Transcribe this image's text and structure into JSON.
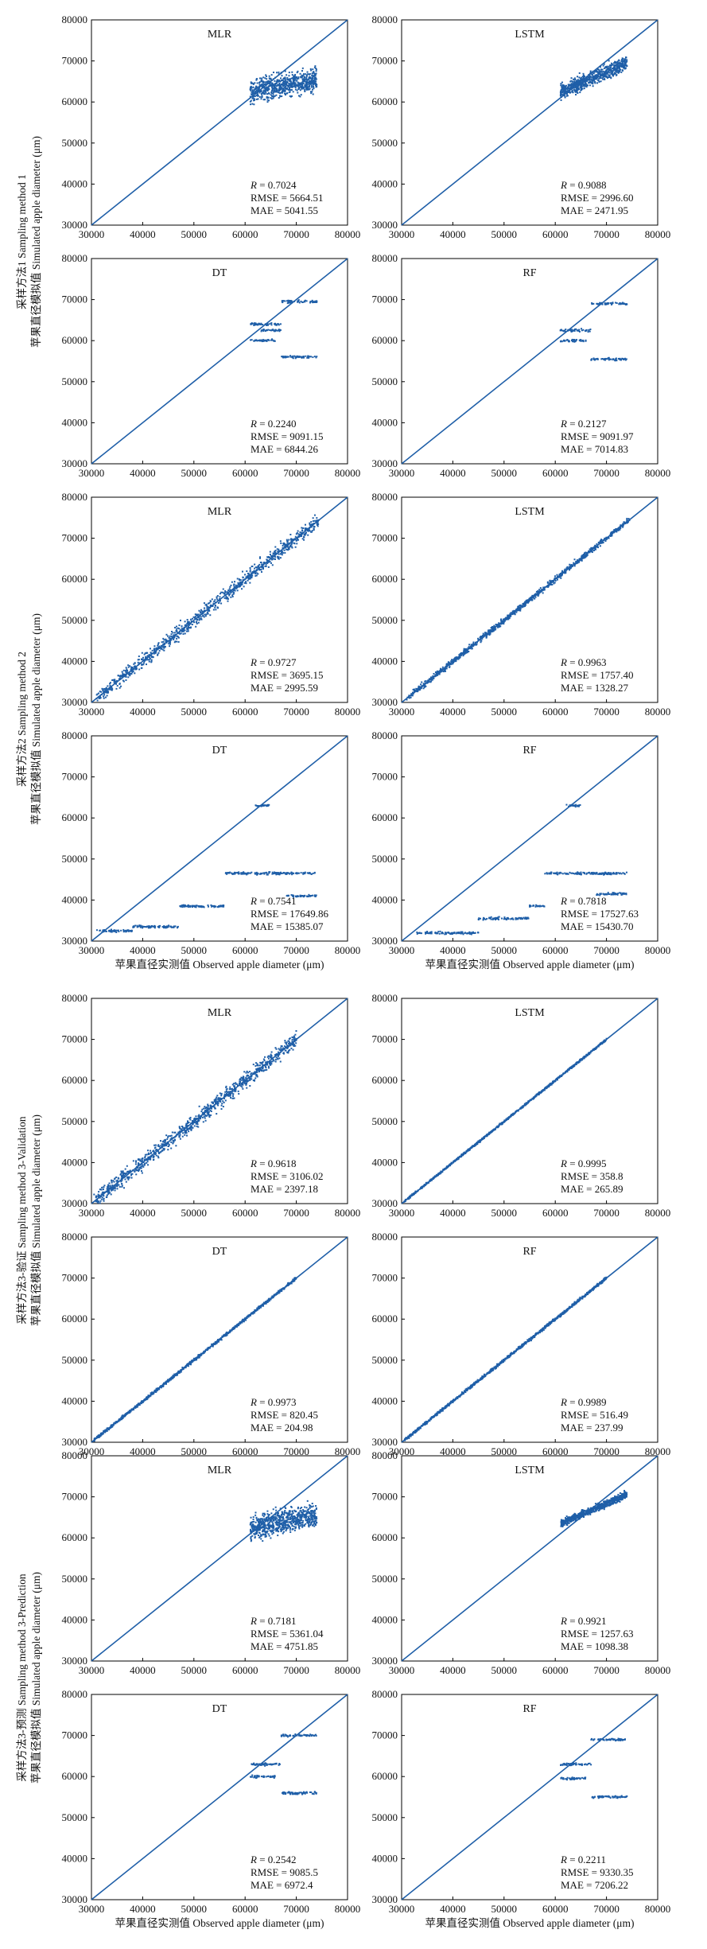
{
  "figure": {
    "x_axis_label": "苹果直径实测值 Observed apple diameter (μm)",
    "row_labels": [
      {
        "line1": "采样方法1 Sampling method 1",
        "line2": "苹果直径模拟值 Simulated apple diameter (μm)"
      },
      {
        "line1": "采样方法2 Sampling method 2",
        "line2": "苹果直径模拟值 Simulated apple diameter (μm)"
      },
      {
        "line1": "采样方法3-验证 Sampling method 3-Validation",
        "line2": "苹果直径模拟值 Simulated apple diameter (μm)"
      },
      {
        "line1": "采样方法3-预测 Sampling method 3-Prediction",
        "line2": "苹果直径模拟值 Simulated apple diameter (μm)"
      }
    ],
    "colors": {
      "points": "#1f5fa8",
      "reference_line": "#1f5fa8",
      "frame": "#000000"
    }
  },
  "chart_data": [
    {
      "type": "scatter",
      "title": "MLR",
      "group": 0,
      "col": 0,
      "row": 0,
      "xlim": [
        30000,
        80000
      ],
      "ylim": [
        30000,
        80000
      ],
      "xticks": [
        "30000",
        "40000",
        "50000",
        "60000",
        "70000",
        "80000"
      ],
      "yticks": [
        "30000",
        "40000",
        "50000",
        "60000",
        "70000",
        "80000"
      ],
      "reference_line": "1:1",
      "stats": {
        "R": "0.7024",
        "RMSE": "5664.51",
        "MAE": "5041.55"
      },
      "pattern": "cluster_high",
      "x_range": [
        61000,
        74000
      ],
      "y_center": 64000,
      "y_spread": 4000
    },
    {
      "type": "scatter",
      "title": "LSTM",
      "group": 0,
      "col": 1,
      "row": 0,
      "xlim": [
        30000,
        80000
      ],
      "ylim": [
        30000,
        80000
      ],
      "xticks": [
        "30000",
        "40000",
        "50000",
        "60000",
        "70000",
        "80000"
      ],
      "yticks": [
        "30000",
        "40000",
        "50000",
        "60000",
        "70000",
        "80000"
      ],
      "reference_line": "1:1",
      "stats": {
        "R": "0.9088",
        "RMSE": "2996.60",
        "MAE": "2471.95"
      },
      "pattern": "cluster_follow",
      "x_range": [
        61000,
        74000
      ],
      "y_center": 66000,
      "y_spread": 2500
    },
    {
      "type": "scatter",
      "title": "DT",
      "group": 0,
      "col": 0,
      "row": 1,
      "xlim": [
        30000,
        80000
      ],
      "ylim": [
        30000,
        80000
      ],
      "xticks": [
        "30000",
        "40000",
        "50000",
        "60000",
        "70000",
        "80000"
      ],
      "yticks": [
        "30000",
        "40000",
        "50000",
        "60000",
        "70000",
        "80000"
      ],
      "reference_line": "1:1",
      "stats": {
        "R": "0.2240",
        "RMSE": "9091.15",
        "MAE": "6844.26"
      },
      "pattern": "steps",
      "steps": [
        [
          61000,
          67000,
          64000
        ],
        [
          61000,
          66000,
          60000
        ],
        [
          63000,
          67000,
          62500
        ],
        [
          67000,
          74000,
          69500
        ],
        [
          67000,
          74000,
          56000
        ]
      ]
    },
    {
      "type": "scatter",
      "title": "RF",
      "group": 0,
      "col": 1,
      "row": 1,
      "xlim": [
        30000,
        80000
      ],
      "ylim": [
        30000,
        80000
      ],
      "xticks": [
        "30000",
        "40000",
        "50000",
        "60000",
        "70000",
        "80000"
      ],
      "yticks": [
        "30000",
        "40000",
        "50000",
        "60000",
        "70000",
        "80000"
      ],
      "reference_line": "1:1",
      "stats": {
        "R": "0.2127",
        "RMSE": "9091.97",
        "MAE": "7014.83"
      },
      "pattern": "steps",
      "steps": [
        [
          61000,
          67000,
          62500
        ],
        [
          61000,
          66000,
          60000
        ],
        [
          67000,
          74000,
          69000
        ],
        [
          67000,
          74000,
          55500
        ]
      ]
    },
    {
      "type": "scatter",
      "title": "MLR",
      "group": 1,
      "col": 0,
      "row": 0,
      "xlim": [
        30000,
        80000
      ],
      "ylim": [
        30000,
        80000
      ],
      "xticks": [
        "30000",
        "40000",
        "50000",
        "60000",
        "70000",
        "80000"
      ],
      "yticks": [
        "30000",
        "40000",
        "50000",
        "60000",
        "70000",
        "80000"
      ],
      "reference_line": "1:1",
      "stats": {
        "R": "0.9727",
        "RMSE": "3695.15",
        "MAE": "2995.59"
      },
      "pattern": "wide_diag",
      "x_range": [
        31000,
        74500
      ],
      "y_spread": 2500
    },
    {
      "type": "scatter",
      "title": "LSTM",
      "group": 1,
      "col": 1,
      "row": 0,
      "xlim": [
        30000,
        80000
      ],
      "ylim": [
        30000,
        80000
      ],
      "xticks": [
        "30000",
        "40000",
        "50000",
        "60000",
        "70000",
        "80000"
      ],
      "yticks": [
        "30000",
        "40000",
        "50000",
        "60000",
        "70000",
        "80000"
      ],
      "reference_line": "1:1",
      "stats": {
        "R": "0.9963",
        "RMSE": "1757.40",
        "MAE": "1328.27"
      },
      "pattern": "wide_diag",
      "x_range": [
        31000,
        74500
      ],
      "y_spread": 1000
    },
    {
      "type": "scatter",
      "title": "DT",
      "group": 1,
      "col": 0,
      "row": 1,
      "xlim": [
        30000,
        80000
      ],
      "ylim": [
        30000,
        80000
      ],
      "xticks": [
        "30000",
        "40000",
        "50000",
        "60000",
        "70000",
        "80000"
      ],
      "yticks": [
        "30000",
        "40000",
        "50000",
        "60000",
        "70000",
        "80000"
      ],
      "reference_line": "1:1",
      "stats": {
        "R": "0.7541",
        "RMSE": "17649.86",
        "MAE": "15385.07"
      },
      "pattern": "steps",
      "steps": [
        [
          31000,
          38000,
          32500
        ],
        [
          38000,
          47000,
          33500
        ],
        [
          47000,
          56000,
          38500
        ],
        [
          56000,
          74000,
          46500
        ],
        [
          68000,
          74000,
          41000
        ],
        [
          62000,
          65000,
          63000
        ]
      ]
    },
    {
      "type": "scatter",
      "title": "RF",
      "group": 1,
      "col": 1,
      "row": 1,
      "xlim": [
        30000,
        80000
      ],
      "ylim": [
        30000,
        80000
      ],
      "xticks": [
        "30000",
        "40000",
        "50000",
        "60000",
        "70000",
        "80000"
      ],
      "yticks": [
        "30000",
        "40000",
        "50000",
        "60000",
        "70000",
        "80000"
      ],
      "reference_line": "1:1",
      "stats": {
        "R": "0.7818",
        "RMSE": "17527.63",
        "MAE": "15430.70"
      },
      "pattern": "steps",
      "steps": [
        [
          33000,
          45000,
          32000
        ],
        [
          45000,
          55000,
          35500
        ],
        [
          55000,
          58000,
          38500
        ],
        [
          58000,
          74000,
          46500
        ],
        [
          68000,
          74000,
          41500
        ],
        [
          62000,
          65000,
          63000
        ]
      ]
    },
    {
      "type": "scatter",
      "title": "MLR",
      "group": 2,
      "col": 0,
      "row": 0,
      "xlim": [
        30000,
        80000
      ],
      "ylim": [
        30000,
        80000
      ],
      "xticks": [
        "30000",
        "40000",
        "50000",
        "60000",
        "70000",
        "80000"
      ],
      "yticks": [
        "30000",
        "40000",
        "50000",
        "60000",
        "70000",
        "80000"
      ],
      "reference_line": "1:1",
      "stats": {
        "R": "0.9618",
        "RMSE": "3106.02",
        "MAE": "2397.18"
      },
      "pattern": "wide_diag",
      "x_range": [
        30500,
        70000
      ],
      "y_spread": 2800
    },
    {
      "type": "scatter",
      "title": "LSTM",
      "group": 2,
      "col": 1,
      "row": 0,
      "xlim": [
        30000,
        80000
      ],
      "ylim": [
        30000,
        80000
      ],
      "xticks": [
        "30000",
        "40000",
        "50000",
        "60000",
        "70000",
        "80000"
      ],
      "yticks": [
        "30000",
        "40000",
        "50000",
        "60000",
        "70000",
        "80000"
      ],
      "reference_line": "1:1",
      "stats": {
        "R": "0.9995",
        "RMSE": "358.8",
        "MAE": "265.89"
      },
      "pattern": "wide_diag",
      "x_range": [
        30500,
        70000
      ],
      "y_spread": 350
    },
    {
      "type": "scatter",
      "title": "DT",
      "group": 2,
      "col": 0,
      "row": 1,
      "xlim": [
        30000,
        80000
      ],
      "ylim": [
        30000,
        80000
      ],
      "xticks": [
        "30000",
        "40000",
        "50000",
        "60000",
        "70000",
        "80000"
      ],
      "yticks": [
        "30000",
        "40000",
        "50000",
        "60000",
        "70000",
        "80000"
      ],
      "reference_line": "1:1",
      "stats": {
        "R": "0.9973",
        "RMSE": "820.45",
        "MAE": "204.98"
      },
      "pattern": "wide_diag",
      "x_range": [
        30500,
        70000
      ],
      "y_spread": 500
    },
    {
      "type": "scatter",
      "title": "RF",
      "group": 2,
      "col": 1,
      "row": 1,
      "xlim": [
        30000,
        80000
      ],
      "ylim": [
        30000,
        80000
      ],
      "xticks": [
        "30000",
        "40000",
        "50000",
        "60000",
        "70000",
        "80000"
      ],
      "yticks": [
        "30000",
        "40000",
        "50000",
        "60000",
        "70000",
        "80000"
      ],
      "reference_line": "1:1",
      "stats": {
        "R": "0.9989",
        "RMSE": "516.49",
        "MAE": "237.99"
      },
      "pattern": "wide_diag",
      "x_range": [
        30500,
        70000
      ],
      "y_spread": 500
    },
    {
      "type": "scatter",
      "title": "MLR",
      "group": 3,
      "col": 0,
      "row": 0,
      "xlim": [
        30000,
        80000
      ],
      "ylim": [
        30000,
        80000
      ],
      "xticks": [
        "30000",
        "40000",
        "50000",
        "60000",
        "70000",
        "80000"
      ],
      "yticks": [
        "30000",
        "40000",
        "50000",
        "60000",
        "70000",
        "80000"
      ],
      "reference_line": "1:1",
      "stats": {
        "R": "0.7181",
        "RMSE": "5361.04",
        "MAE": "4751.85"
      },
      "pattern": "cluster_high",
      "x_range": [
        61000,
        74000
      ],
      "y_center": 64000,
      "y_spread": 4000
    },
    {
      "type": "scatter",
      "title": "LSTM",
      "group": 3,
      "col": 1,
      "row": 0,
      "xlim": [
        30000,
        80000
      ],
      "ylim": [
        30000,
        80000
      ],
      "xticks": [
        "30000",
        "40000",
        "50000",
        "60000",
        "70000",
        "80000"
      ],
      "yticks": [
        "30000",
        "40000",
        "50000",
        "60000",
        "70000",
        "80000"
      ],
      "reference_line": "1:1",
      "stats": {
        "R": "0.9921",
        "RMSE": "1257.63",
        "MAE": "1098.38"
      },
      "pattern": "cluster_follow",
      "x_range": [
        61000,
        74000
      ],
      "y_center": 67000,
      "y_spread": 1200
    },
    {
      "type": "scatter",
      "title": "DT",
      "group": 3,
      "col": 0,
      "row": 1,
      "xlim": [
        30000,
        80000
      ],
      "ylim": [
        30000,
        80000
      ],
      "xticks": [
        "30000",
        "40000",
        "50000",
        "60000",
        "70000",
        "80000"
      ],
      "yticks": [
        "30000",
        "40000",
        "50000",
        "60000",
        "70000",
        "80000"
      ],
      "reference_line": "1:1",
      "stats": {
        "R": "0.2542",
        "RMSE": "9085.5",
        "MAE": "6972.4"
      },
      "pattern": "steps",
      "steps": [
        [
          61000,
          67000,
          63000
        ],
        [
          61000,
          66000,
          60000
        ],
        [
          67000,
          74000,
          70000
        ],
        [
          67000,
          74000,
          56000
        ]
      ]
    },
    {
      "type": "scatter",
      "title": "RF",
      "group": 3,
      "col": 1,
      "row": 1,
      "xlim": [
        30000,
        80000
      ],
      "ylim": [
        30000,
        80000
      ],
      "xticks": [
        "30000",
        "40000",
        "50000",
        "60000",
        "70000",
        "80000"
      ],
      "yticks": [
        "30000",
        "40000",
        "50000",
        "60000",
        "70000",
        "80000"
      ],
      "reference_line": "1:1",
      "stats": {
        "R": "0.2211",
        "RMSE": "9330.35",
        "MAE": "7206.22"
      },
      "pattern": "steps",
      "steps": [
        [
          61000,
          67000,
          63000
        ],
        [
          61000,
          66000,
          59500
        ],
        [
          67000,
          74000,
          69000
        ],
        [
          67000,
          74000,
          55000
        ]
      ]
    }
  ]
}
